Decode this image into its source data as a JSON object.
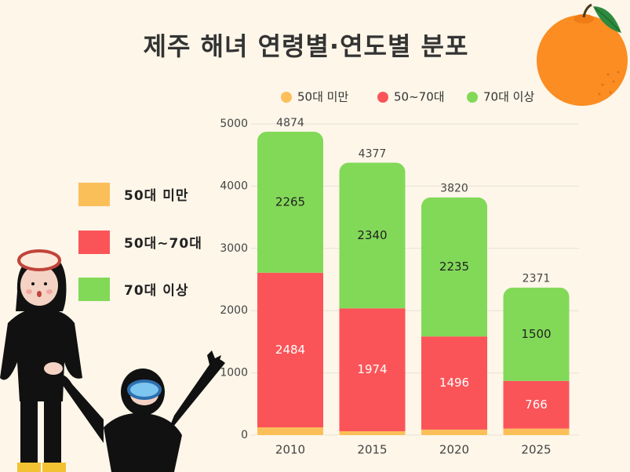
{
  "title": "제주 해녀 연령별·연도별 분포",
  "colors": {
    "background": "#fdf6e9",
    "under50": "#fbbf5a",
    "age50to70": "#fb5458",
    "over70": "#82d958",
    "grid": "#e6e2d9",
    "orange": "#fb8d22"
  },
  "side_legend": [
    {
      "label": "50대 미만",
      "color": "#fbbf5a"
    },
    {
      "label": "50대~70대",
      "color": "#fb5458"
    },
    {
      "label": "70대 이상",
      "color": "#82d958"
    }
  ],
  "chart_data": {
    "type": "bar",
    "stacked": true,
    "title": "제주 해녀 연령별·연도별 분포",
    "categories": [
      "2010",
      "2015",
      "2020",
      "2025"
    ],
    "series": [
      {
        "name": "50대 미만",
        "color": "#fbbf5a",
        "values": [
          125,
          63,
          89,
          105
        ]
      },
      {
        "name": "50~70대",
        "color": "#fb5458",
        "values": [
          2484,
          1974,
          1496,
          766
        ]
      },
      {
        "name": "70대 이상",
        "color": "#82d958",
        "values": [
          2265,
          2340,
          2235,
          1500
        ]
      }
    ],
    "totals": [
      4874,
      4377,
      3820,
      2371
    ],
    "ylim": [
      0,
      5000
    ],
    "yticks": [
      0,
      1000,
      2000,
      3000,
      4000,
      5000
    ],
    "grid": true,
    "legend_position": "top"
  },
  "icons": [
    "tangerine-icon",
    "haenyeo-diver-illustration",
    "haenyeo-child-illustration"
  ]
}
